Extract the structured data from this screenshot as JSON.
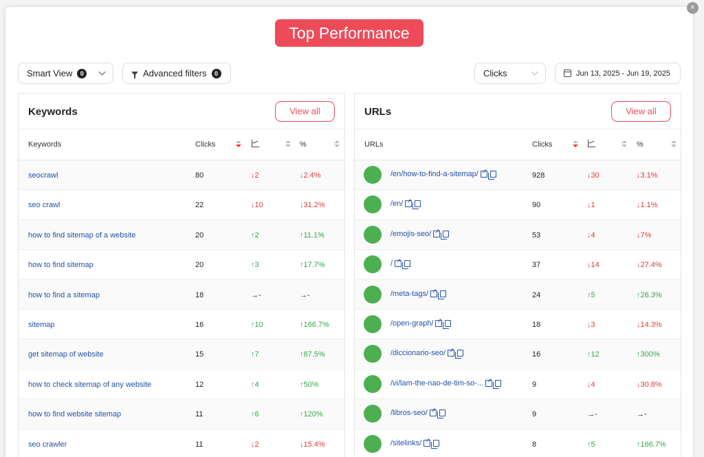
{
  "title": "Top Performance",
  "close_label": "×",
  "toolbar": {
    "smart_view_label": "Smart View",
    "smart_view_count": "0",
    "advanced_filters_label": "Advanced filters",
    "advanced_filters_count": "0",
    "metric_selected": "Clicks",
    "date_range": "Jun 13, 2025 - Jun 19, 2025"
  },
  "icons": {
    "close": "close-icon",
    "smart_view_chevron": "chevron-down-icon",
    "filter": "filter-icon",
    "metric_chevron": "chevron-down-icon",
    "calendar": "calendar-icon",
    "sort": "sort-icon",
    "trend": "trend-chart-icon",
    "external_link": "external-link-icon",
    "copy": "copy-icon"
  },
  "colors": {
    "accent": "#ee4b5a",
    "link": "#2151a8",
    "negative": "#e03a3a",
    "positive": "#35a54a",
    "url_dot": "#4caf50"
  },
  "keywords_panel": {
    "title": "Keywords",
    "view_all_label": "View all",
    "columns": [
      "Keywords",
      "Clicks",
      "%"
    ],
    "rows": [
      {
        "keyword": "seocrawl",
        "clicks": "80",
        "change": "↓2",
        "pct": "↓2.4%",
        "dir": "neg"
      },
      {
        "keyword": "seo crawl",
        "clicks": "22",
        "change": "↓10",
        "pct": "↓31.2%",
        "dir": "neg"
      },
      {
        "keyword": "how to find sitemap of a website",
        "clicks": "20",
        "change": "↑2",
        "pct": "↑11.1%",
        "dir": "pos"
      },
      {
        "keyword": "how to find sitemap",
        "clicks": "20",
        "change": "↑3",
        "pct": "↑17.7%",
        "dir": "pos"
      },
      {
        "keyword": "how to find a sitemap",
        "clicks": "18",
        "change": "→-",
        "pct": "→-",
        "dir": "neu"
      },
      {
        "keyword": "sitemap",
        "clicks": "16",
        "change": "↑10",
        "pct": "↑166.7%",
        "dir": "pos"
      },
      {
        "keyword": "get sitemap of website",
        "clicks": "15",
        "change": "↑7",
        "pct": "↑87.5%",
        "dir": "pos"
      },
      {
        "keyword": "how to check sitemap of any website",
        "clicks": "12",
        "change": "↑4",
        "pct": "↑50%",
        "dir": "pos"
      },
      {
        "keyword": "how to find website sitemap",
        "clicks": "11",
        "change": "↑6",
        "pct": "↑120%",
        "dir": "pos"
      },
      {
        "keyword": "seo crawler",
        "clicks": "11",
        "change": "↓2",
        "pct": "↓15.4%",
        "dir": "neg"
      }
    ]
  },
  "urls_panel": {
    "title": "URLs",
    "view_all_label": "View all",
    "columns": [
      "URLs",
      "Clicks",
      "%"
    ],
    "rows": [
      {
        "url": "/en/how-to-find-a-sitemap/",
        "clicks": "928",
        "change": "↓30",
        "pct": "↓3.1%",
        "dir": "neg"
      },
      {
        "url": "/en/",
        "clicks": "90",
        "change": "↓1",
        "pct": "↓1.1%",
        "dir": "neg"
      },
      {
        "url": "/emojis-seo/",
        "clicks": "53",
        "change": "↓4",
        "pct": "↓7%",
        "dir": "neg"
      },
      {
        "url": "/",
        "clicks": "37",
        "change": "↓14",
        "pct": "↓27.4%",
        "dir": "neg"
      },
      {
        "url": "/meta-tags/",
        "clicks": "24",
        "change": "↑5",
        "pct": "↑26.3%",
        "dir": "pos"
      },
      {
        "url": "/open-graph/",
        "clicks": "18",
        "change": "↓3",
        "pct": "↓14.3%",
        "dir": "neg"
      },
      {
        "url": "/diccionario-seo/",
        "clicks": "16",
        "change": "↑12",
        "pct": "↑300%",
        "dir": "pos"
      },
      {
        "url": "/vi/lam-the-nao-de-tim-so-...",
        "clicks": "9",
        "change": "↓4",
        "pct": "↓30.8%",
        "dir": "neg"
      },
      {
        "url": "/libros-seo/",
        "clicks": "9",
        "change": "→-",
        "pct": "→-",
        "dir": "neu"
      },
      {
        "url": "/sitelinks/",
        "clicks": "8",
        "change": "↑5",
        "pct": "↑166.7%",
        "dir": "pos"
      }
    ]
  }
}
